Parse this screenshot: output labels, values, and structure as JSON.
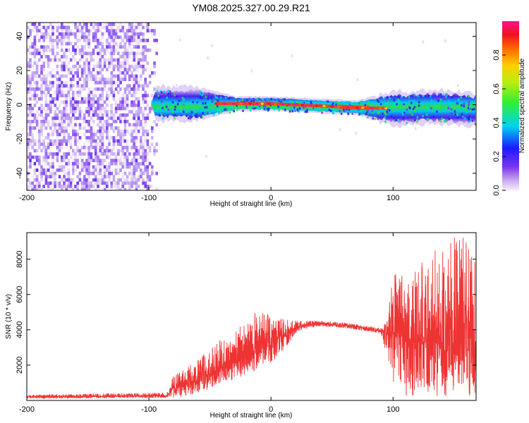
{
  "title": "YM08.2025.327.00.29.R21",
  "colors": {
    "snr_line": "#ee3333",
    "frame": "#000000",
    "background": "#ffffff"
  },
  "chart_data": [
    {
      "type": "heatmap",
      "title": "YM08.2025.327.00.29.R21",
      "xlabel": "Height of straight line (km)",
      "ylabel": "Frequency (Hz)",
      "xlim": [
        -200,
        168
      ],
      "ylim": [
        -50,
        48
      ],
      "xticks": [
        -200,
        -100,
        0,
        100
      ],
      "yticks": [
        -40,
        -20,
        0,
        20,
        40
      ],
      "grid": false,
      "description_regions": [
        {
          "x_range": [
            -200,
            -93
          ],
          "freq_range": [
            -50,
            48
          ],
          "amplitude": "low, scattered noise (0.0-0.25)"
        },
        {
          "x_range": [
            -100,
            -60
          ],
          "freq_range": [
            -8,
            9
          ],
          "amplitude": "0.2-0.5"
        },
        {
          "x_range": [
            -60,
            80
          ],
          "freq_range": [
            -3,
            3
          ],
          "center_freq": 0,
          "amplitude": "up to 1.0"
        },
        {
          "x_range": [
            80,
            168
          ],
          "freq_range": [
            -9,
            8
          ],
          "amplitude": "0.2-0.5"
        }
      ],
      "colorbar": {
        "label": "Normalized spectral amplitude",
        "range": [
          0,
          1
        ],
        "ticks": [
          0.0,
          0.2,
          0.4,
          0.6,
          0.8
        ],
        "tick_labels": [
          "0.0",
          "0.2",
          "0.4",
          "0.6",
          "0.8"
        ],
        "colormap": "rainbow (white-lavender, violet, blue, cyan, green, yellow, orange, red, magenta)"
      }
    },
    {
      "type": "line",
      "xlabel": "Height of straight line (km)",
      "ylabel": "SNR (10 * v/v)",
      "xlim": [
        -200,
        168
      ],
      "ylim": [
        0,
        9500
      ],
      "xticks": [
        -200,
        -100,
        0,
        100
      ],
      "yticks": [
        2000,
        4000,
        6000,
        8000
      ],
      "grid": false,
      "series": [
        {
          "name": "SNR",
          "color": "#ee3333",
          "x": [
            -200,
            -180,
            -160,
            -140,
            -120,
            -100,
            -85,
            -80,
            -70,
            -60,
            -50,
            -40,
            -30,
            -20,
            -10,
            0,
            10,
            20,
            30,
            40,
            50,
            60,
            70,
            80,
            90,
            95,
            100,
            110,
            120,
            130,
            140,
            150,
            160,
            168
          ],
          "values": [
            200,
            220,
            220,
            230,
            240,
            250,
            260,
            700,
            900,
            1100,
            1500,
            1900,
            2200,
            2600,
            3000,
            3300,
            3700,
            4100,
            4300,
            4350,
            4300,
            4250,
            4150,
            4050,
            3950,
            3900,
            3800,
            3600,
            3400,
            3300,
            3200,
            3100,
            3000,
            2900
          ],
          "envelope_max": [
            300,
            350,
            350,
            380,
            400,
            420,
            450,
            1400,
            1800,
            2300,
            3000,
            3500,
            3800,
            4700,
            5100,
            4800,
            4600,
            4500,
            4500,
            4500,
            4450,
            4400,
            4300,
            4200,
            4100,
            4500,
            7200,
            7000,
            7500,
            8300,
            9100,
            9400,
            9300,
            8500
          ],
          "envelope_min": [
            100,
            120,
            120,
            130,
            140,
            150,
            150,
            150,
            250,
            400,
            600,
            900,
            1200,
            1500,
            1700,
            2100,
            2800,
            3800,
            4100,
            4200,
            4150,
            4100,
            4000,
            3900,
            3800,
            2500,
            500,
            300,
            200,
            200,
            200,
            200,
            250,
            300
          ]
        }
      ]
    }
  ]
}
